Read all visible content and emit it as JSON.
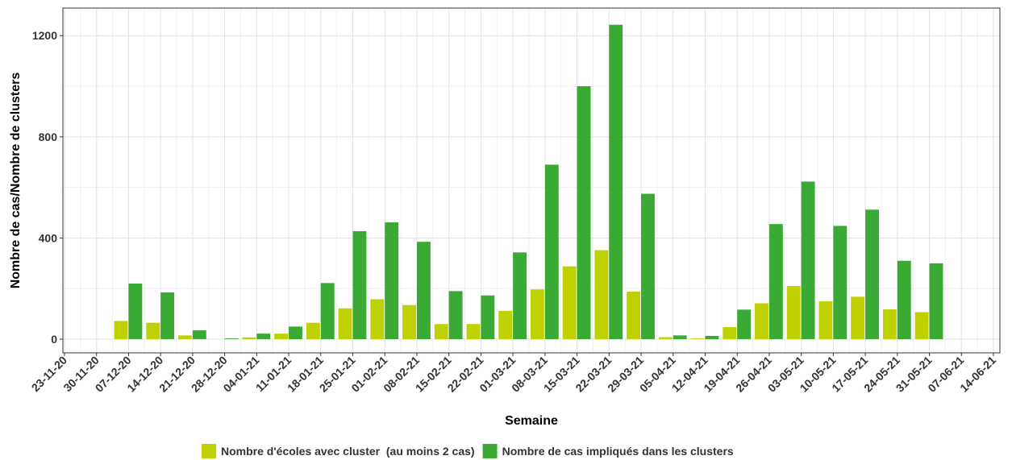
{
  "chart_data": {
    "type": "bar",
    "x_label": "Semaine",
    "y_label": "Nombre de cas/Nombre de clusters",
    "categories": [
      "23-11-20",
      "30-11-20",
      "07-12-20",
      "14-12-20",
      "21-12-20",
      "28-12-20",
      "04-01-21",
      "11-01-21",
      "18-01-21",
      "25-01-21",
      "01-02-21",
      "08-02-21",
      "15-02-21",
      "22-02-21",
      "01-03-21",
      "08-03-21",
      "15-03-21",
      "22-03-21",
      "29-03-21",
      "05-04-21",
      "12-04-21",
      "19-04-21",
      "26-04-21",
      "03-05-21",
      "10-05-21",
      "17-05-21",
      "24-05-21",
      "31-05-21",
      "07-06-21",
      "14-06-21"
    ],
    "series": [
      {
        "name": "Nombre d'écoles avec cluster  (au moins 2 cas)",
        "color": "#bfd100",
        "values": [
          0,
          0,
          72,
          65,
          15,
          0,
          7,
          22,
          65,
          122,
          158,
          135,
          60,
          60,
          112,
          197,
          288,
          352,
          188,
          8,
          3,
          48,
          142,
          210,
          150,
          168,
          118,
          107,
          0,
          0
        ]
      },
      {
        "name": "Nombre de cas impliqués dans les clusters",
        "color": "#3aaa35",
        "values": [
          0,
          0,
          220,
          185,
          35,
          3,
          22,
          50,
          222,
          427,
          462,
          385,
          190,
          173,
          343,
          690,
          1000,
          1243,
          575,
          15,
          13,
          117,
          455,
          623,
          448,
          512,
          310,
          300,
          0,
          0
        ]
      }
    ],
    "ylim": [
      -54,
      1309
    ],
    "yticks": [
      0,
      400,
      800,
      1200
    ],
    "minor_grid": [
      200,
      600,
      1000
    ],
    "grid": true,
    "legend": "bottom"
  }
}
